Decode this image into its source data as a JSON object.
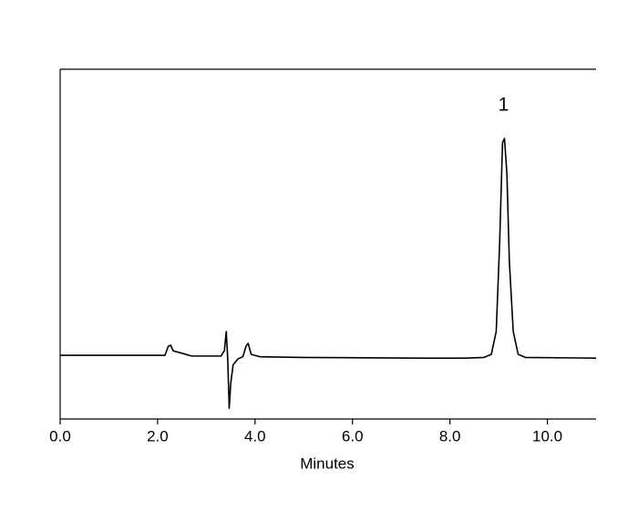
{
  "chart_data": {
    "type": "line",
    "xlabel": "Minutes",
    "xlim": [
      0,
      11
    ],
    "ylim": [
      0,
      100
    ],
    "xticks": [
      {
        "value": 0,
        "label": "0.0"
      },
      {
        "value": 2,
        "label": "2.0"
      },
      {
        "value": 4,
        "label": "4.0"
      },
      {
        "value": 6,
        "label": "6.0"
      },
      {
        "value": 8,
        "label": "8.0"
      },
      {
        "value": 10,
        "label": "10.0"
      }
    ],
    "annotations": [
      {
        "text": "1"
      }
    ],
    "series": [
      {
        "color": "#000000",
        "x": [
          0,
          2.15,
          2.22,
          2.27,
          2.32,
          2.5,
          2.7,
          3.3,
          3.37,
          3.41,
          3.44,
          3.47,
          3.5,
          3.55,
          3.65,
          3.75,
          3.82,
          3.86,
          3.92,
          4.1,
          5.0,
          7.4,
          8.3,
          8.7,
          8.85,
          8.95,
          9.02,
          9.08,
          9.12,
          9.17,
          9.22,
          9.3,
          9.4,
          9.55,
          11
        ],
        "values": [
          18.2,
          18.2,
          20.8,
          21.1,
          19.5,
          18.8,
          18.0,
          18.0,
          19.5,
          25.0,
          17.0,
          3.1,
          10,
          15.5,
          17.2,
          17.8,
          21.0,
          21.6,
          18.5,
          17.8,
          17.6,
          17.4,
          17.4,
          17.6,
          18.5,
          25,
          50,
          79,
          80.2,
          70,
          45,
          25,
          18.5,
          17.6,
          17.4
        ]
      }
    ]
  }
}
